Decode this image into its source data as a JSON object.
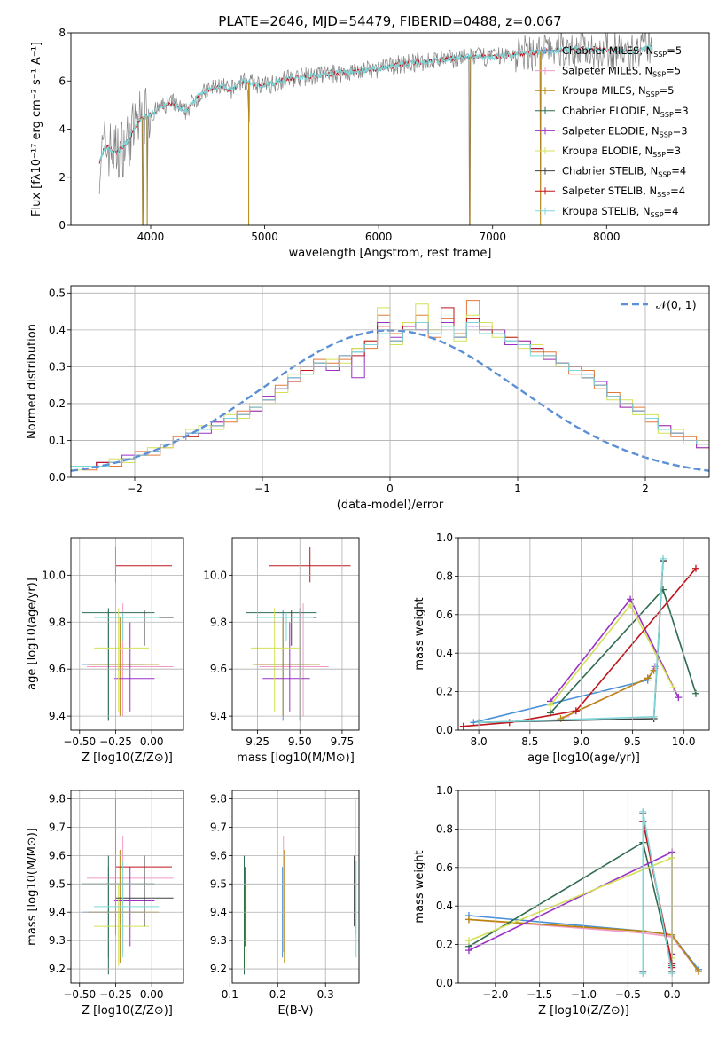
{
  "figure": {
    "title": "PLATE=2646, MJD=54479, FIBERID=0488, z=0.067"
  },
  "legend_entries": [
    {
      "label": "Chabrier MILES, N",
      "sub": "SSP",
      "tail": "=5",
      "color": "#4a90d9"
    },
    {
      "label": "Salpeter MILES, N",
      "sub": "SSP",
      "tail": "=5",
      "color": "#f29ac8"
    },
    {
      "label": "Kroupa MILES, N",
      "sub": "SSP",
      "tail": "=5",
      "color": "#b8860b"
    },
    {
      "label": "Chabrier ELODIE, N",
      "sub": "SSP",
      "tail": "=3",
      "color": "#2e6b4f"
    },
    {
      "label": "Salpeter ELODIE, N",
      "sub": "SSP",
      "tail": "=3",
      "color": "#9b30c8"
    },
    {
      "label": "Kroupa ELODIE, N",
      "sub": "SSP",
      "tail": "=3",
      "color": "#d4e157"
    },
    {
      "label": "Chabrier STELIB, N",
      "sub": "SSP",
      "tail": "=4",
      "color": "#404040"
    },
    {
      "label": "Salpeter STELIB, N",
      "sub": "SSP",
      "tail": "=4",
      "color": "#c0141c"
    },
    {
      "label": "Kroupa STELIB, N",
      "sub": "SSP",
      "tail": "=4",
      "color": "#7fd6d8"
    }
  ],
  "chart_data": [
    {
      "id": "spectrum",
      "type": "line",
      "xlabel": "wavelength [Angstrom, rest frame]",
      "ylabel": "Flux [f",
      "ylabel_text": "Flux [fλ10⁻¹⁷ erg cm⁻² s⁻¹ A⁻¹]",
      "xlim": [
        3300,
        8900
      ],
      "ylim": [
        0,
        8
      ],
      "xticks": [
        4000,
        5000,
        6000,
        7000,
        8000
      ],
      "yticks": [
        0,
        2,
        4,
        6,
        8
      ],
      "grid": false,
      "legend": "top-right",
      "data_color": "#808080",
      "model_color": "#7fd6d8",
      "continuum": {
        "x": [
          3550,
          3600,
          3700,
          3800,
          3900,
          4000,
          4100,
          4200,
          4300,
          4400,
          4500,
          4600,
          4700,
          4800,
          4900,
          5000,
          5200,
          5400,
          5600,
          5800,
          6000,
          6200,
          6400,
          6600,
          6800,
          7000,
          7200,
          7400,
          7600,
          7800,
          8000,
          8200,
          8400
        ],
        "y": [
          2.6,
          3.3,
          3.0,
          3.5,
          4.4,
          4.6,
          4.9,
          5.1,
          4.7,
          5.3,
          5.6,
          5.8,
          5.6,
          6.0,
          5.9,
          5.8,
          6.1,
          6.2,
          6.3,
          6.4,
          6.5,
          6.7,
          6.8,
          6.9,
          7.0,
          7.0,
          7.1,
          7.2,
          7.3,
          7.3,
          7.3,
          7.2,
          7.4
        ]
      },
      "absorption_lines": [
        {
          "x": 3930,
          "depth": 4.2
        },
        {
          "x": 3970,
          "depth": 3.4
        },
        {
          "x": 4860,
          "depth": 1.4
        },
        {
          "x": 6800,
          "depth": 7.0
        },
        {
          "x": 7420,
          "depth": 7.3
        }
      ]
    },
    {
      "id": "residual-histogram",
      "type": "histogram",
      "xlabel": "(data-model)/error",
      "ylabel": "Normed distribution",
      "xlim": [
        -2.5,
        2.5
      ],
      "ylim": [
        0,
        0.52
      ],
      "xticks": [
        -2,
        -1,
        0,
        1,
        2
      ],
      "yticks": [
        0.0,
        0.1,
        0.2,
        0.3,
        0.4,
        0.5
      ],
      "grid": true,
      "legend": "top-right",
      "reference_label": "𝒩(0, 1)",
      "reference_color": "#5b8fd6",
      "bin_width": 0.1,
      "bins_start": -2.5,
      "series": [
        {
          "color": "#4a90d9",
          "values": [
            0.03,
            0.03,
            0.04,
            0.04,
            0.05,
            0.06,
            0.07,
            0.09,
            0.1,
            0.12,
            0.13,
            0.14,
            0.16,
            0.17,
            0.19,
            0.21,
            0.24,
            0.27,
            0.29,
            0.31,
            0.3,
            0.33,
            0.34,
            0.36,
            0.4,
            0.37,
            0.41,
            0.42,
            0.39,
            0.41,
            0.38,
            0.42,
            0.4,
            0.39,
            0.37,
            0.36,
            0.35,
            0.33,
            0.31,
            0.29,
            0.28,
            0.25,
            0.22,
            0.2,
            0.18,
            0.16,
            0.13,
            0.12,
            0.1,
            0.09
          ]
        },
        {
          "color": "#e07a3a",
          "values": [
            0.03,
            0.02,
            0.04,
            0.03,
            0.05,
            0.07,
            0.06,
            0.08,
            0.11,
            0.11,
            0.13,
            0.15,
            0.15,
            0.18,
            0.18,
            0.22,
            0.25,
            0.26,
            0.3,
            0.32,
            0.31,
            0.32,
            0.35,
            0.35,
            0.44,
            0.39,
            0.4,
            0.44,
            0.38,
            0.43,
            0.39,
            0.48,
            0.41,
            0.4,
            0.36,
            0.37,
            0.34,
            0.34,
            0.3,
            0.28,
            0.29,
            0.24,
            0.23,
            0.19,
            0.19,
            0.15,
            0.14,
            0.11,
            0.11,
            0.08
          ]
        },
        {
          "color": "#d4e157",
          "values": [
            0.02,
            0.03,
            0.03,
            0.05,
            0.04,
            0.06,
            0.08,
            0.08,
            0.1,
            0.13,
            0.14,
            0.13,
            0.17,
            0.16,
            0.2,
            0.2,
            0.23,
            0.28,
            0.28,
            0.3,
            0.32,
            0.31,
            0.35,
            0.37,
            0.46,
            0.36,
            0.42,
            0.47,
            0.4,
            0.41,
            0.37,
            0.44,
            0.42,
            0.38,
            0.38,
            0.35,
            0.36,
            0.32,
            0.3,
            0.3,
            0.27,
            0.26,
            0.21,
            0.21,
            0.17,
            0.17,
            0.12,
            0.13,
            0.09,
            0.1
          ]
        },
        {
          "color": "#9b30c8",
          "values": [
            0.03,
            0.03,
            0.04,
            0.04,
            0.06,
            0.06,
            0.07,
            0.09,
            0.1,
            0.12,
            0.12,
            0.15,
            0.16,
            0.17,
            0.18,
            0.22,
            0.24,
            0.27,
            0.29,
            0.3,
            0.29,
            0.33,
            0.27,
            0.36,
            0.42,
            0.38,
            0.41,
            0.4,
            0.39,
            0.42,
            0.38,
            0.41,
            0.4,
            0.4,
            0.36,
            0.37,
            0.35,
            0.32,
            0.31,
            0.29,
            0.27,
            0.26,
            0.22,
            0.19,
            0.18,
            0.16,
            0.14,
            0.12,
            0.1,
            0.08
          ]
        },
        {
          "color": "#c0141c",
          "values": [
            0.03,
            0.03,
            0.04,
            0.04,
            0.05,
            0.06,
            0.07,
            0.09,
            0.1,
            0.11,
            0.13,
            0.14,
            0.16,
            0.17,
            0.19,
            0.21,
            0.24,
            0.26,
            0.29,
            0.31,
            0.3,
            0.33,
            0.33,
            0.37,
            0.41,
            0.37,
            0.41,
            0.42,
            0.39,
            0.46,
            0.38,
            0.43,
            0.4,
            0.39,
            0.38,
            0.36,
            0.35,
            0.33,
            0.31,
            0.3,
            0.27,
            0.25,
            0.22,
            0.2,
            0.18,
            0.16,
            0.13,
            0.12,
            0.1,
            0.09
          ]
        },
        {
          "color": "#7fd6d8",
          "values": [
            0.03,
            0.03,
            0.03,
            0.04,
            0.05,
            0.06,
            0.07,
            0.09,
            0.1,
            0.12,
            0.13,
            0.14,
            0.16,
            0.17,
            0.19,
            0.21,
            0.24,
            0.27,
            0.28,
            0.31,
            0.3,
            0.33,
            0.34,
            0.36,
            0.39,
            0.37,
            0.4,
            0.42,
            0.39,
            0.41,
            0.38,
            0.42,
            0.39,
            0.39,
            0.37,
            0.36,
            0.33,
            0.33,
            0.31,
            0.29,
            0.27,
            0.25,
            0.22,
            0.2,
            0.18,
            0.16,
            0.13,
            0.12,
            0.1,
            0.09
          ]
        }
      ]
    },
    {
      "id": "age-vs-Z",
      "type": "scatter",
      "xlabel": "Z [log10(Z/Z⊙)]",
      "ylabel": "age  [log10(age/yr)]",
      "xlim": [
        -0.56,
        0.22
      ],
      "ylim": [
        9.34,
        10.16
      ],
      "xticks": [
        -0.5,
        -0.25,
        0.0
      ],
      "yticks": [
        9.4,
        9.6,
        9.8,
        10.0
      ],
      "grid": true
    },
    {
      "id": "age-vs-mass",
      "type": "scatter",
      "xlabel": "mass [log10(M/M⊙)]",
      "ylabel": "",
      "xlim": [
        9.1,
        9.85
      ],
      "ylim": [
        9.34,
        10.16
      ],
      "xticks": [
        9.25,
        9.5,
        9.75
      ],
      "yticks": [
        9.4,
        9.6,
        9.8,
        10.0
      ],
      "grid": true
    },
    {
      "id": "mass-weight-vs-age",
      "type": "line",
      "xlabel": "age  [log10(age/yr)]",
      "ylabel": "mass weight",
      "xlim": [
        7.8,
        10.25
      ],
      "ylim": [
        0,
        1
      ],
      "xticks": [
        8.0,
        8.5,
        9.0,
        9.5,
        10.0
      ],
      "yticks": [
        0.0,
        0.2,
        0.4,
        0.6,
        0.8,
        1.0
      ],
      "grid": true
    },
    {
      "id": "mass-vs-Z",
      "type": "scatter",
      "xlabel": "Z [log10(Z/Z⊙)]",
      "ylabel": "mass [log10(M/M⊙)]",
      "xlim": [
        -0.56,
        0.22
      ],
      "ylim": [
        9.15,
        9.83
      ],
      "xticks": [
        -0.5,
        -0.25,
        0.0
      ],
      "yticks": [
        9.2,
        9.3,
        9.4,
        9.5,
        9.6,
        9.7,
        9.8
      ],
      "grid": true
    },
    {
      "id": "mass-vs-EBV",
      "type": "scatter",
      "xlabel": "E(B-V)",
      "ylabel": "",
      "xlim": [
        0.105,
        0.37
      ],
      "ylim": [
        9.15,
        9.83
      ],
      "xticks": [
        0.1,
        0.2,
        0.3
      ],
      "yticks": [
        9.2,
        9.3,
        9.4,
        9.5,
        9.6,
        9.7,
        9.8
      ],
      "grid": true
    },
    {
      "id": "mass-weight-vs-Z",
      "type": "line",
      "xlabel": "Z [log10(Z/Z⊙)]",
      "ylabel": "mass weight",
      "xlim": [
        -2.42,
        0.42
      ],
      "ylim": [
        0,
        1
      ],
      "xticks": [
        -2.0,
        -1.5,
        -1.0,
        -0.5,
        0.0
      ],
      "yticks": [
        0.0,
        0.2,
        0.4,
        0.6,
        0.8,
        1.0
      ],
      "grid": true
    }
  ],
  "fits": [
    {
      "color": "#4a90d9",
      "Z": -0.3,
      "Zlo": -0.48,
      "Zhi": -0.05,
      "age": 9.62,
      "agelo": 9.38,
      "agehi": 9.85,
      "mass": 9.4,
      "masslo": 9.24,
      "masshi": 9.56,
      "ebv": 0.21,
      "weights_age": [
        [
          7.95,
          0.04
        ],
        [
          9.65,
          0.26
        ],
        [
          9.72,
          0.33
        ]
      ],
      "weights_Z": [
        [
          -2.3,
          0.35
        ],
        [
          -0.33,
          0.27
        ],
        [
          0.0,
          0.25
        ],
        [
          0.3,
          0.07
        ]
      ]
    },
    {
      "color": "#f29ac8",
      "Z": -0.2,
      "Zlo": -0.45,
      "Zhi": 0.15,
      "age": 9.61,
      "agelo": 9.4,
      "agehi": 9.88,
      "mass": 9.52,
      "masslo": 9.26,
      "masshi": 9.67,
      "ebv": 0.21,
      "weights_age": [
        [
          8.85,
          0.07
        ],
        [
          9.65,
          0.27
        ],
        [
          9.72,
          0.32
        ]
      ],
      "weights_Z": [
        [
          -2.3,
          0.33
        ],
        [
          -0.33,
          0.26
        ],
        [
          0.0,
          0.24
        ],
        [
          0.3,
          0.06
        ]
      ]
    },
    {
      "color": "#b8860b",
      "Z": -0.22,
      "Zlo": -0.44,
      "Zhi": 0.05,
      "age": 9.62,
      "agelo": 9.4,
      "agehi": 9.82,
      "mass": 9.4,
      "masslo": 9.22,
      "masshi": 9.62,
      "ebv": 0.21,
      "weights_age": [
        [
          8.8,
          0.06
        ],
        [
          9.65,
          0.27
        ],
        [
          9.71,
          0.31
        ]
      ],
      "weights_Z": [
        [
          -2.3,
          0.33
        ],
        [
          -0.33,
          0.27
        ],
        [
          0.0,
          0.25
        ],
        [
          0.3,
          0.06
        ]
      ]
    },
    {
      "color": "#2e6b4f",
      "Z": -0.3,
      "Zlo": -0.48,
      "Zhi": 0.02,
      "age": 9.84,
      "agelo": 9.38,
      "agehi": 9.86,
      "mass": 9.5,
      "masslo": 9.18,
      "masshi": 9.6,
      "ebv": 0.13,
      "weights_age": [
        [
          8.7,
          0.09
        ],
        [
          9.8,
          0.73
        ],
        [
          10.12,
          0.19
        ]
      ],
      "weights_Z": [
        [
          -2.3,
          0.19
        ],
        [
          -0.33,
          0.73
        ],
        [
          0.0,
          0.09
        ]
      ]
    },
    {
      "color": "#9b30c8",
      "Z": -0.15,
      "Zlo": -0.26,
      "Zhi": 0.02,
      "age": 9.56,
      "agelo": 9.42,
      "agehi": 9.8,
      "mass": 9.44,
      "masslo": 9.28,
      "masshi": 9.56,
      "ebv": 0.13,
      "weights_age": [
        [
          8.7,
          0.15
        ],
        [
          9.48,
          0.68
        ],
        [
          9.95,
          0.17
        ]
      ],
      "weights_Z": [
        [
          -2.3,
          0.17
        ],
        [
          0.0,
          0.68
        ],
        [
          0.0,
          0.15
        ]
      ]
    },
    {
      "color": "#d4e157",
      "Z": -0.23,
      "Zlo": -0.4,
      "Zhi": -0.02,
      "age": 9.69,
      "agelo": 9.42,
      "agehi": 9.86,
      "mass": 9.35,
      "masslo": 9.21,
      "masshi": 9.5,
      "ebv": 0.13,
      "weights_age": [
        [
          8.7,
          0.13
        ],
        [
          9.48,
          0.65
        ],
        [
          9.9,
          0.22
        ]
      ],
      "weights_Z": [
        [
          -2.3,
          0.22
        ],
        [
          0.0,
          0.65
        ],
        [
          0.0,
          0.13
        ]
      ]
    },
    {
      "color": "#404040",
      "Z": -0.05,
      "Zlo": -0.25,
      "Zhi": 0.15,
      "age": 9.82,
      "agelo": 9.7,
      "agehi": 9.85,
      "mass": 9.45,
      "masslo": 9.35,
      "masshi": 9.6,
      "ebv": 0.36,
      "weights_age": [
        [
          8.0,
          0.04
        ],
        [
          9.71,
          0.06
        ],
        [
          9.8,
          0.88
        ]
      ],
      "weights_Z": [
        [
          -0.33,
          0.06
        ],
        [
          -0.33,
          0.88
        ],
        [
          0.0,
          0.06
        ]
      ]
    },
    {
      "color": "#c0141c",
      "Z": -0.25,
      "Zlo": -0.25,
      "Zhi": 0.14,
      "age": 10.04,
      "agelo": 9.97,
      "agehi": 10.12,
      "mass": 9.56,
      "masslo": 9.32,
      "masshi": 9.8,
      "ebv": 0.36,
      "weights_age": [
        [
          7.85,
          0.02
        ],
        [
          8.3,
          0.04
        ],
        [
          8.95,
          0.1
        ],
        [
          10.12,
          0.84
        ]
      ],
      "weights_Z": [
        [
          -0.33,
          0.84
        ],
        [
          0.0,
          0.1
        ],
        [
          0.0,
          0.08
        ]
      ]
    },
    {
      "color": "#7fd6d8",
      "Z": -0.2,
      "Zlo": -0.4,
      "Zhi": 0.05,
      "age": 9.82,
      "agelo": 9.72,
      "agehi": 9.84,
      "mass": 9.42,
      "masslo": 9.24,
      "masshi": 9.58,
      "ebv": 0.36,
      "weights_age": [
        [
          8.0,
          0.04
        ],
        [
          9.71,
          0.07
        ],
        [
          9.8,
          0.89
        ]
      ],
      "weights_Z": [
        [
          -0.33,
          0.05
        ],
        [
          -0.33,
          0.89
        ],
        [
          0.0,
          0.05
        ]
      ]
    }
  ]
}
